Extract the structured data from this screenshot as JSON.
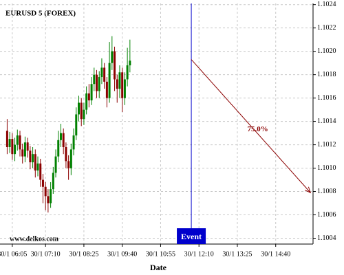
{
  "chart_data": {
    "type": "candlestick",
    "title": "EURUSD 5 (FOREX)",
    "watermark": "www.delkos.com",
    "x_label": "Date",
    "up_color": "#008000",
    "down_color": "#8b0000",
    "grid": true,
    "x": [
      "30/1 05:55",
      "30/1 06:00",
      "30/1 06:05",
      "30/1 06:10",
      "30/1 06:15",
      "30/1 06:20",
      "30/1 06:25",
      "30/1 06:30",
      "30/1 06:35",
      "30/1 06:40",
      "30/1 06:45",
      "30/1 06:50",
      "30/1 06:55",
      "30/1 07:00",
      "30/1 07:05",
      "30/1 07:10",
      "30/1 07:15",
      "30/1 07:20",
      "30/1 07:25",
      "30/1 07:30",
      "30/1 07:35",
      "30/1 07:40",
      "30/1 07:45",
      "30/1 07:50",
      "30/1 07:55",
      "30/1 08:00",
      "30/1 08:05",
      "30/1 08:10",
      "30/1 08:15",
      "30/1 08:20",
      "30/1 08:25",
      "30/1 08:30",
      "30/1 08:35",
      "30/1 08:40",
      "30/1 08:45",
      "30/1 08:50",
      "30/1 08:55",
      "30/1 09:00",
      "30/1 09:05",
      "30/1 09:10",
      "30/1 09:15",
      "30/1 09:20",
      "30/1 09:25",
      "30/1 09:30",
      "30/1 09:35",
      "30/1 09:40",
      "30/1 09:45",
      "30/1 09:50",
      "30/1 09:55"
    ],
    "open": [
      1.10132,
      1.10118,
      1.10125,
      1.10112,
      1.1012,
      1.10128,
      1.10116,
      1.1011,
      1.10122,
      1.10115,
      1.10105,
      1.10112,
      1.10098,
      1.10104,
      1.1009,
      1.10084,
      1.10076,
      1.1007,
      1.10082,
      1.10096,
      1.1011,
      1.10124,
      1.1013,
      1.10118,
      1.10106,
      1.101,
      1.10116,
      1.10128,
      1.10146,
      1.10156,
      1.10142,
      1.1015,
      1.10164,
      1.10158,
      1.10172,
      1.1018,
      1.10166,
      1.10178,
      1.10186,
      1.10174,
      1.1016,
      1.1019,
      1.102,
      1.10176,
      1.10168,
      1.10182,
      1.1016,
      1.10176,
      1.10188
    ],
    "high": [
      1.10142,
      1.10131,
      1.1013,
      1.10126,
      1.10133,
      1.10132,
      1.10121,
      1.10127,
      1.10126,
      1.10119,
      1.10118,
      1.10116,
      1.1011,
      1.10108,
      1.10095,
      1.10088,
      1.10082,
      1.10088,
      1.10101,
      1.10116,
      1.10132,
      1.10138,
      1.10134,
      1.10122,
      1.10111,
      1.10121,
      1.10134,
      1.10152,
      1.10162,
      1.1016,
      1.10156,
      1.1017,
      1.10172,
      1.10178,
      1.10186,
      1.10184,
      1.10183,
      1.10194,
      1.1019,
      1.10178,
      1.10208,
      1.10213,
      1.10204,
      1.1018,
      1.10188,
      1.10186,
      1.10182,
      1.10203,
      1.1021
    ],
    "low": [
      1.10112,
      1.10113,
      1.10107,
      1.10106,
      1.10115,
      1.1011,
      1.10104,
      1.10105,
      1.10109,
      1.10099,
      1.101,
      1.10092,
      1.10093,
      1.10084,
      1.1007,
      1.10064,
      1.10062,
      1.10066,
      1.10078,
      1.10092,
      1.10105,
      1.10118,
      1.10112,
      1.101,
      1.1009,
      1.10094,
      1.10111,
      1.10124,
      1.1014,
      1.10136,
      1.10137,
      1.10146,
      1.10152,
      1.10154,
      1.10166,
      1.1016,
      1.1016,
      1.10172,
      1.10168,
      1.10152,
      1.10156,
      1.10184,
      1.10166,
      1.10156,
      1.1016,
      1.10148,
      1.10154,
      1.1017,
      1.10182
    ],
    "close": [
      1.10118,
      1.10125,
      1.10112,
      1.1012,
      1.10128,
      1.10116,
      1.1011,
      1.10122,
      1.10115,
      1.10105,
      1.10112,
      1.10098,
      1.10104,
      1.1009,
      1.10084,
      1.10076,
      1.1007,
      1.10082,
      1.10096,
      1.1011,
      1.10124,
      1.1013,
      1.10118,
      1.10106,
      1.101,
      1.10116,
      1.10128,
      1.10146,
      1.10156,
      1.10142,
      1.1015,
      1.10164,
      1.10158,
      1.10172,
      1.1018,
      1.10166,
      1.10178,
      1.10186,
      1.10174,
      1.1016,
      1.1019,
      1.102,
      1.10176,
      1.10168,
      1.10182,
      1.1016,
      1.10176,
      1.10188,
      1.10192
    ],
    "xlim": [
      "30/1 05:41",
      "30/1 15:53"
    ],
    "xticks": [
      "30/1 06:05",
      "30/1 07:10",
      "30/1 08:25",
      "30/1 09:40",
      "30/1 10:55",
      "30/1 12:10",
      "30/1 13:25",
      "30/1 14:40"
    ],
    "ylim": [
      1.10035,
      1.10241
    ],
    "yticks": [
      1.1004,
      1.1006,
      1.1008,
      {
        "value": 1.101,
        "label": "1.1010"
      },
      1.1012,
      1.1014,
      1.1016,
      1.1018,
      {
        "value": 1.102,
        "label": "1.1020"
      },
      1.1022,
      1.1024
    ],
    "event": {
      "x": "30/1 11:55",
      "label": "Event",
      "color": "#0000cc"
    },
    "arrow": {
      "from": {
        "x": "30/1 11:55",
        "y": 1.10193
      },
      "to": {
        "x": "30/1 15:48",
        "y": 1.10079
      },
      "label": "75.0%",
      "color": "#8b0000"
    }
  }
}
